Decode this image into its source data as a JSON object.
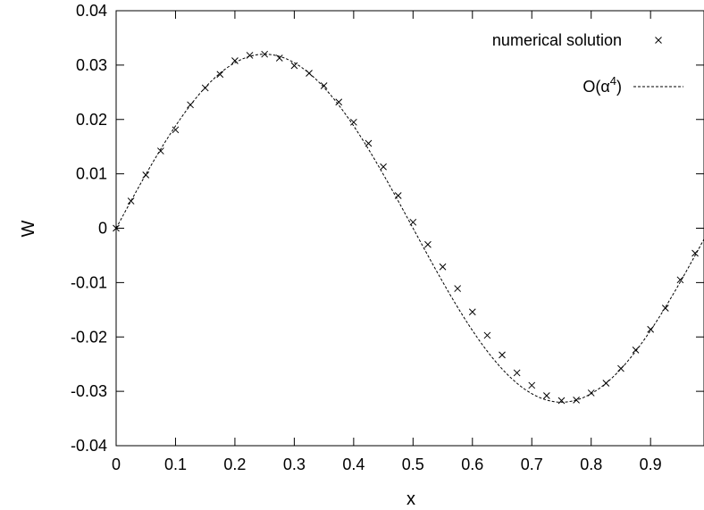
{
  "chart_data": {
    "type": "line",
    "title": "",
    "xlabel": "x",
    "ylabel": "W",
    "xlim": [
      0,
      0.99
    ],
    "ylim": [
      -0.04,
      0.04
    ],
    "x_ticks": [
      "0",
      "0.1",
      "0.2",
      "0.3",
      "0.4",
      "0.5",
      "0.6",
      "0.7",
      "0.8",
      "0.9"
    ],
    "x_tick_values": [
      0,
      0.1,
      0.2,
      0.3,
      0.4,
      0.5,
      0.6,
      0.7,
      0.8,
      0.9
    ],
    "y_ticks": [
      "0.04",
      "0.03",
      "0.02",
      "0.01",
      "0",
      "-0.01",
      "-0.02",
      "-0.03",
      "-0.04"
    ],
    "y_tick_values": [
      0.04,
      0.03,
      0.02,
      0.01,
      0,
      -0.01,
      -0.02,
      -0.03,
      -0.04
    ],
    "grid": false,
    "legend_position": "top-right",
    "series": [
      {
        "name": "numerical solution",
        "style": "markers",
        "marker": "cross",
        "x": [
          0,
          0.025,
          0.05,
          0.075,
          0.1,
          0.125,
          0.15,
          0.175,
          0.2,
          0.225,
          0.25,
          0.275,
          0.3,
          0.325,
          0.35,
          0.375,
          0.4,
          0.425,
          0.45,
          0.475,
          0.5,
          0.525,
          0.55,
          0.575,
          0.6,
          0.625,
          0.65,
          0.675,
          0.7,
          0.725,
          0.75,
          0.775,
          0.8,
          0.825,
          0.85,
          0.875,
          0.9,
          0.925,
          0.95,
          0.975
        ],
        "y": [
          0,
          0.005,
          0.0098,
          0.0142,
          0.0181,
          0.0227,
          0.0258,
          0.0283,
          0.0308,
          0.0318,
          0.032,
          0.0313,
          0.0299,
          0.0285,
          0.0262,
          0.0232,
          0.0195,
          0.0156,
          0.0113,
          0.006,
          0.0011,
          -0.003,
          -0.0071,
          -0.0111,
          -0.0154,
          -0.0197,
          -0.0233,
          -0.0266,
          -0.0289,
          -0.0308,
          -0.0317,
          -0.0316,
          -0.0303,
          -0.0285,
          -0.0258,
          -0.0224,
          -0.0186,
          -0.0147,
          -0.0095,
          -0.0046
        ]
      },
      {
        "name": "O(α⁴)",
        "name_base": "O(α",
        "name_sup": "4",
        "name_end": ")",
        "style": "dashed",
        "function": "0.032*sin(2*pi*x)",
        "amplitude": 0.032,
        "samples": 200
      }
    ]
  }
}
